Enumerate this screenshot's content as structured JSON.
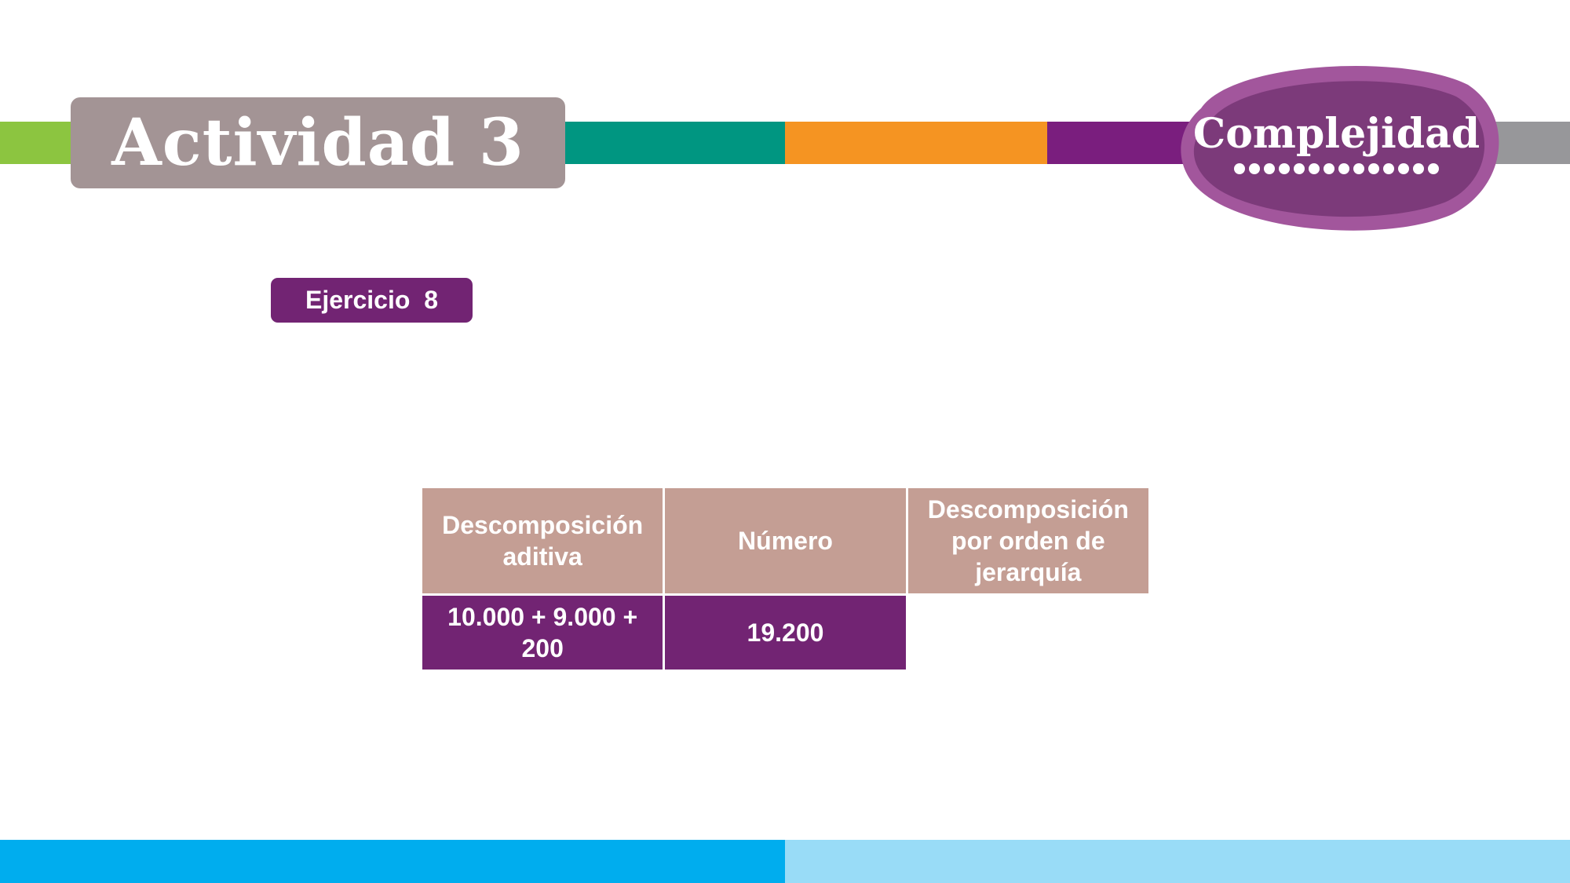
{
  "header": {
    "title": "Actividad 3",
    "badge": "Complejidad",
    "colors": {
      "green": "#8cc540",
      "teal": "#009681",
      "orange": "#f59422",
      "purple": "#7a1e7e",
      "gray": "#97979a",
      "title_bg": "#a39495",
      "badge_outer": "#a2569c",
      "badge_inner": "#7c3a7a"
    }
  },
  "exercise": {
    "label": "Ejercicio  8"
  },
  "table": {
    "headers": [
      "Descomposición aditiva",
      "Número",
      "Descomposición por orden de jerarquía"
    ],
    "rows": [
      [
        "10.000 + 9.000 + 200",
        "19.200",
        ""
      ]
    ],
    "colors": {
      "header_bg": "#c49e94",
      "cell_bg": "#722473",
      "border": "#c2272d"
    }
  },
  "footer": {
    "colors": {
      "left": "#00adee",
      "right": "#99dcf7"
    }
  }
}
